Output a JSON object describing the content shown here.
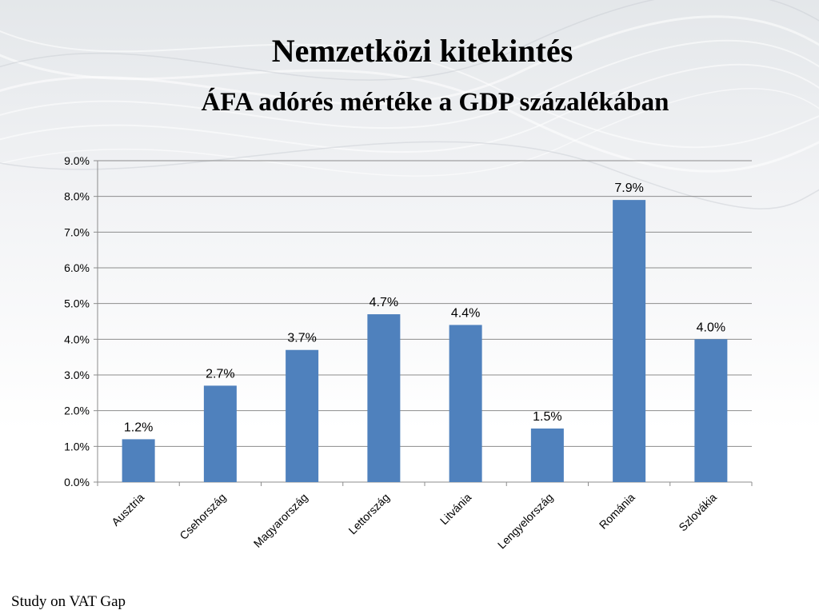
{
  "slide": {
    "title": "Nemzetközi kitekintés",
    "subtitle": "ÁFA adórés mértéke a GDP százalékában",
    "footer": "Study on VAT Gap"
  },
  "chart_data": {
    "type": "bar",
    "title": "ÁFA adórés mértéke a GDP százalékában",
    "categories": [
      "Ausztria",
      "Csehország",
      "Magyarország",
      "Lettország",
      "Litvánia",
      "Lengyelország",
      "Románia",
      "Szlovákia"
    ],
    "values": [
      1.2,
      2.7,
      3.7,
      4.7,
      4.4,
      1.5,
      7.9,
      4.0
    ],
    "data_labels": [
      "1.2%",
      "2.7%",
      "3.7%",
      "4.7%",
      "4.4%",
      "1.5%",
      "7.9%",
      "4.0%"
    ],
    "y_ticks": [
      "0.0%",
      "1.0%",
      "2.0%",
      "3.0%",
      "4.0%",
      "5.0%",
      "6.0%",
      "7.0%",
      "8.0%",
      "9.0%"
    ],
    "ylim": [
      0,
      9
    ],
    "xlabel": "",
    "ylabel": "",
    "grid": true,
    "legend": "none",
    "bar_color": "#4f81bd"
  }
}
